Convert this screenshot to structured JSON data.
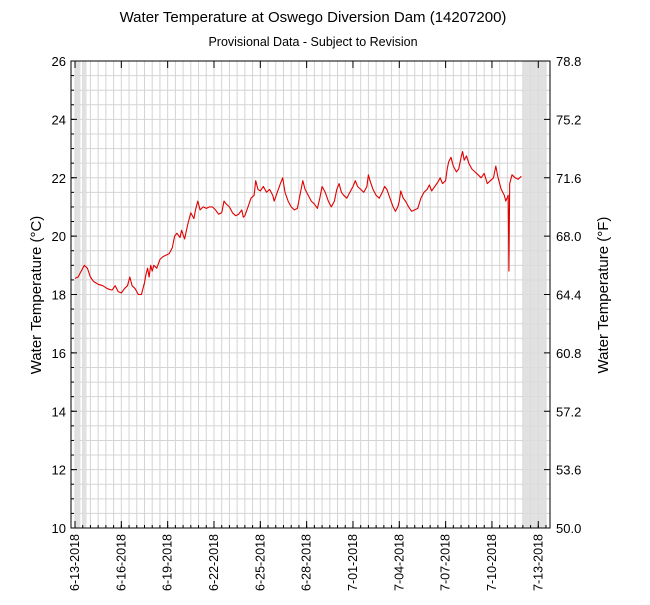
{
  "chart_data": {
    "type": "line",
    "title": "Water Temperature at Oswego Diversion Dam (14207200)",
    "subtitle": "Provisional Data - Subject to Revision",
    "ylabel_left": "Water Temperature (°C)",
    "ylabel_right": "Water Temperature (°F)",
    "ylim": [
      10,
      26
    ],
    "yticks_left": [
      10,
      12,
      14,
      16,
      18,
      20,
      22,
      24,
      26
    ],
    "yticks_right": [
      "50.0",
      "53.6",
      "57.2",
      "60.8",
      "64.4",
      "68.0",
      "71.6",
      "75.2",
      "78.8"
    ],
    "xlim_days": [
      0,
      30.5
    ],
    "xticks": [
      {
        "day": 0,
        "label": "6-13-2018"
      },
      {
        "day": 3,
        "label": "6-16-2018"
      },
      {
        "day": 6,
        "label": "6-19-2018"
      },
      {
        "day": 9,
        "label": "6-22-2018"
      },
      {
        "day": 12,
        "label": "6-25-2018"
      },
      {
        "day": 15,
        "label": "6-28-2018"
      },
      {
        "day": 18,
        "label": "7-01-2018"
      },
      {
        "day": 21,
        "label": "7-04-2018"
      },
      {
        "day": 24,
        "label": "7-07-2018"
      },
      {
        "day": 27,
        "label": "7-10-2018"
      },
      {
        "day": 30,
        "label": "7-13-2018"
      }
    ],
    "series": [
      {
        "name": "Water Temperature",
        "color": "#e00000",
        "points": [
          [
            0.0,
            18.55
          ],
          [
            0.2,
            18.6
          ],
          [
            0.4,
            18.8
          ],
          [
            0.6,
            19.0
          ],
          [
            0.8,
            18.9
          ],
          [
            1.0,
            18.6
          ],
          [
            1.2,
            18.45
          ],
          [
            1.5,
            18.35
          ],
          [
            1.8,
            18.3
          ],
          [
            2.1,
            18.2
          ],
          [
            2.4,
            18.15
          ],
          [
            2.6,
            18.3
          ],
          [
            2.8,
            18.1
          ],
          [
            3.0,
            18.05
          ],
          [
            3.2,
            18.2
          ],
          [
            3.4,
            18.3
          ],
          [
            3.55,
            18.6
          ],
          [
            3.7,
            18.3
          ],
          [
            3.9,
            18.2
          ],
          [
            4.1,
            18.0
          ],
          [
            4.3,
            18.0
          ],
          [
            4.5,
            18.4
          ],
          [
            4.6,
            18.7
          ],
          [
            4.7,
            18.9
          ],
          [
            4.8,
            18.6
          ],
          [
            4.9,
            19.0
          ],
          [
            5.0,
            18.8
          ],
          [
            5.1,
            19.0
          ],
          [
            5.3,
            18.9
          ],
          [
            5.5,
            19.2
          ],
          [
            5.7,
            19.3
          ],
          [
            5.9,
            19.35
          ],
          [
            6.1,
            19.4
          ],
          [
            6.3,
            19.6
          ],
          [
            6.45,
            20.0
          ],
          [
            6.6,
            20.1
          ],
          [
            6.8,
            19.95
          ],
          [
            6.9,
            20.2
          ],
          [
            7.1,
            19.9
          ],
          [
            7.3,
            20.4
          ],
          [
            7.5,
            20.8
          ],
          [
            7.7,
            20.6
          ],
          [
            7.8,
            20.9
          ],
          [
            7.95,
            21.2
          ],
          [
            8.1,
            20.9
          ],
          [
            8.3,
            21.0
          ],
          [
            8.5,
            20.95
          ],
          [
            8.7,
            21.0
          ],
          [
            8.9,
            21.0
          ],
          [
            9.1,
            20.9
          ],
          [
            9.3,
            20.75
          ],
          [
            9.5,
            20.8
          ],
          [
            9.65,
            21.2
          ],
          [
            9.8,
            21.1
          ],
          [
            10.0,
            21.0
          ],
          [
            10.2,
            20.8
          ],
          [
            10.4,
            20.7
          ],
          [
            10.6,
            20.75
          ],
          [
            10.8,
            20.9
          ],
          [
            10.9,
            20.65
          ],
          [
            11.0,
            20.7
          ],
          [
            11.2,
            21.0
          ],
          [
            11.4,
            21.3
          ],
          [
            11.6,
            21.4
          ],
          [
            11.7,
            21.9
          ],
          [
            11.85,
            21.6
          ],
          [
            12.0,
            21.55
          ],
          [
            12.2,
            21.7
          ],
          [
            12.4,
            21.5
          ],
          [
            12.6,
            21.6
          ],
          [
            12.8,
            21.4
          ],
          [
            12.9,
            21.2
          ],
          [
            13.1,
            21.5
          ],
          [
            13.3,
            21.8
          ],
          [
            13.45,
            22.0
          ],
          [
            13.6,
            21.5
          ],
          [
            13.8,
            21.2
          ],
          [
            14.0,
            21.0
          ],
          [
            14.2,
            20.9
          ],
          [
            14.4,
            20.95
          ],
          [
            14.6,
            21.5
          ],
          [
            14.75,
            21.9
          ],
          [
            14.9,
            21.6
          ],
          [
            15.1,
            21.4
          ],
          [
            15.3,
            21.2
          ],
          [
            15.5,
            21.1
          ],
          [
            15.7,
            20.95
          ],
          [
            15.85,
            21.3
          ],
          [
            16.0,
            21.7
          ],
          [
            16.2,
            21.5
          ],
          [
            16.4,
            21.2
          ],
          [
            16.6,
            21.0
          ],
          [
            16.8,
            21.2
          ],
          [
            16.95,
            21.6
          ],
          [
            17.1,
            21.8
          ],
          [
            17.25,
            21.5
          ],
          [
            17.4,
            21.4
          ],
          [
            17.6,
            21.3
          ],
          [
            17.8,
            21.5
          ],
          [
            18.0,
            21.7
          ],
          [
            18.15,
            21.9
          ],
          [
            18.3,
            21.7
          ],
          [
            18.5,
            21.6
          ],
          [
            18.7,
            21.5
          ],
          [
            18.9,
            21.7
          ],
          [
            19.0,
            22.1
          ],
          [
            19.1,
            21.9
          ],
          [
            19.3,
            21.6
          ],
          [
            19.5,
            21.4
          ],
          [
            19.7,
            21.3
          ],
          [
            19.9,
            21.5
          ],
          [
            20.05,
            21.7
          ],
          [
            20.2,
            21.6
          ],
          [
            20.4,
            21.3
          ],
          [
            20.6,
            21.0
          ],
          [
            20.75,
            20.85
          ],
          [
            20.9,
            21.0
          ],
          [
            21.0,
            21.2
          ],
          [
            21.1,
            21.55
          ],
          [
            21.25,
            21.3
          ],
          [
            21.4,
            21.2
          ],
          [
            21.6,
            21.0
          ],
          [
            21.8,
            20.85
          ],
          [
            22.0,
            20.9
          ],
          [
            22.2,
            20.95
          ],
          [
            22.4,
            21.3
          ],
          [
            22.6,
            21.5
          ],
          [
            22.8,
            21.6
          ],
          [
            22.95,
            21.75
          ],
          [
            23.1,
            21.55
          ],
          [
            23.3,
            21.7
          ],
          [
            23.5,
            21.85
          ],
          [
            23.65,
            22.0
          ],
          [
            23.8,
            21.8
          ],
          [
            24.0,
            21.9
          ],
          [
            24.1,
            22.3
          ],
          [
            24.2,
            22.55
          ],
          [
            24.35,
            22.7
          ],
          [
            24.5,
            22.4
          ],
          [
            24.7,
            22.2
          ],
          [
            24.85,
            22.3
          ],
          [
            25.0,
            22.7
          ],
          [
            25.1,
            22.9
          ],
          [
            25.2,
            22.6
          ],
          [
            25.35,
            22.75
          ],
          [
            25.5,
            22.5
          ],
          [
            25.7,
            22.3
          ],
          [
            25.9,
            22.2
          ],
          [
            26.1,
            22.1
          ],
          [
            26.3,
            22.0
          ],
          [
            26.5,
            22.15
          ],
          [
            26.7,
            21.8
          ],
          [
            26.9,
            21.9
          ],
          [
            27.1,
            22.0
          ],
          [
            27.25,
            22.4
          ],
          [
            27.4,
            22.0
          ],
          [
            27.6,
            21.6
          ],
          [
            27.8,
            21.4
          ],
          [
            27.9,
            21.2
          ],
          [
            28.05,
            21.4
          ],
          [
            28.1,
            18.8
          ],
          [
            28.15,
            21.8
          ],
          [
            28.3,
            22.1
          ],
          [
            28.5,
            22.0
          ],
          [
            28.7,
            21.95
          ],
          [
            28.9,
            22.05
          ]
        ]
      }
    ],
    "shaded_regions_days": [
      [
        0.0,
        0.35
      ],
      [
        0.5,
        0.75
      ],
      [
        29.0,
        30.5
      ]
    ],
    "grid": true
  }
}
